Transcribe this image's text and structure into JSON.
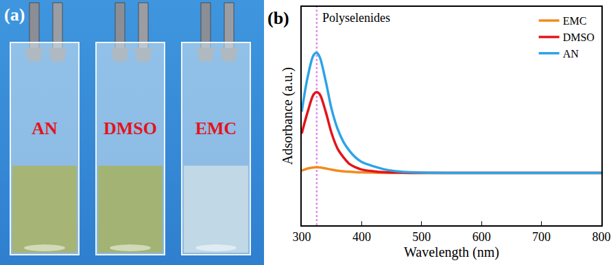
{
  "photo": {
    "label": "(a)",
    "samples": [
      {
        "name": "AN",
        "color": "#a9b468"
      },
      {
        "name": "DMSO",
        "color": "#a4b266"
      },
      {
        "name": "EMC",
        "color": "#c6dbe6"
      }
    ]
  },
  "chart_data": {
    "type": "line",
    "label": "(b)",
    "x_label": "Wavelength (nm)",
    "y_label": "Adsorbance (a.u.)",
    "x": [
      300,
      310,
      320,
      325,
      330,
      340,
      350,
      360,
      370,
      380,
      390,
      400,
      420,
      440,
      460,
      480,
      500,
      550,
      600,
      700,
      800
    ],
    "series": [
      {
        "name": "EMC",
        "color": "#f28a1e",
        "values": [
          0.25,
          0.26,
          0.265,
          0.266,
          0.265,
          0.26,
          0.255,
          0.25,
          0.247,
          0.245,
          0.243,
          0.242,
          0.241,
          0.24,
          0.24,
          0.24,
          0.24,
          0.24,
          0.24,
          0.24,
          0.24
        ]
      },
      {
        "name": "DMSO",
        "color": "#e3141b",
        "values": [
          0.42,
          0.52,
          0.6,
          0.61,
          0.6,
          0.52,
          0.42,
          0.35,
          0.31,
          0.28,
          0.265,
          0.255,
          0.247,
          0.243,
          0.241,
          0.24,
          0.24,
          0.24,
          0.24,
          0.24,
          0.24
        ]
      },
      {
        "name": "AN",
        "color": "#2ca3e8",
        "values": [
          0.52,
          0.68,
          0.78,
          0.79,
          0.77,
          0.66,
          0.53,
          0.44,
          0.38,
          0.34,
          0.31,
          0.29,
          0.27,
          0.255,
          0.247,
          0.243,
          0.241,
          0.24,
          0.24,
          0.24,
          0.24
        ]
      }
    ],
    "annotations": [
      {
        "text": "Polyselenides",
        "x": 325,
        "color": "#e08ef0"
      }
    ],
    "xlim": [
      300,
      800
    ],
    "xticks": [
      300,
      400,
      500,
      600,
      700,
      800
    ],
    "ylim": [
      0,
      1
    ],
    "tick_labels": "x",
    "grid": false,
    "legend": "top-right"
  }
}
